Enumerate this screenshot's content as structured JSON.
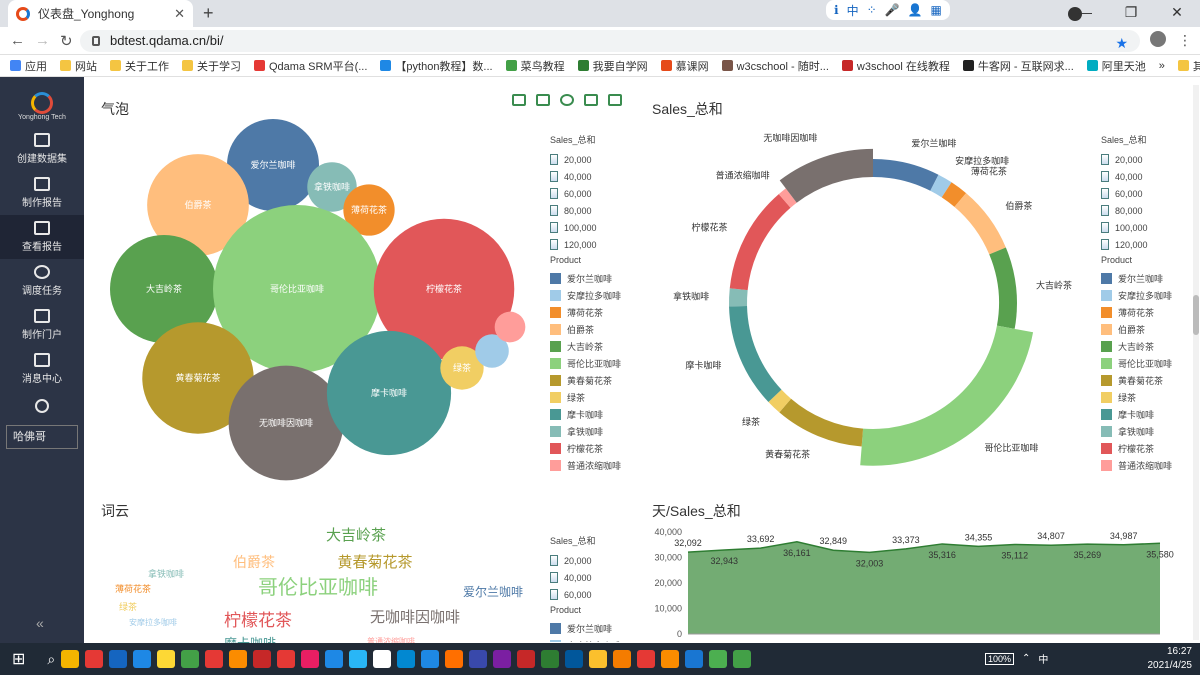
{
  "browser": {
    "tab_title": "仪表盘_Yonghong",
    "url": "bdtest.qdama.cn/bi/",
    "ext_items": [
      "ℹ",
      "中",
      "⁘",
      "🎤",
      "👤",
      "▦"
    ],
    "bookmarks": [
      "应用",
      "网站",
      "关于工作",
      "关于学习",
      "Qdama SRM平台(...",
      "【python教程】数...",
      "菜鸟教程",
      "我要自学网",
      "慕课网",
      "w3cschool - 随时...",
      "w3school 在线教程",
      "牛客网 - 互联网求...",
      "阿里天池",
      "»",
      "其他书签"
    ]
  },
  "sidebar": {
    "logo_text": "Yonghong Tech",
    "items": [
      {
        "label": "创建数据集",
        "icon": "dataset-icon"
      },
      {
        "label": "制作报告",
        "icon": "chart-icon"
      },
      {
        "label": "查看报告",
        "icon": "view-report-icon"
      },
      {
        "label": "调度任务",
        "icon": "clock-icon"
      },
      {
        "label": "制作门户",
        "icon": "home-icon"
      },
      {
        "label": "消息中心",
        "icon": "bell-icon"
      }
    ],
    "user": "哈佛哥"
  },
  "panels": {
    "bubble_title": "气泡",
    "donut_title": "Sales_总和",
    "cloud_title": "词云",
    "area_title": "天/Sales_总和"
  },
  "legends": {
    "size_header": "Sales_总和",
    "size_values": [
      "20,000",
      "40,000",
      "60,000",
      "80,000",
      "100,000",
      "120,000"
    ],
    "size_values_short": [
      "20,000",
      "40,000",
      "60,000"
    ],
    "product_header": "Product"
  },
  "products": [
    {
      "name": "爱尔兰咖啡",
      "color": "#4e79a7"
    },
    {
      "name": "安摩拉多咖啡",
      "color": "#a0cbe8"
    },
    {
      "name": "薄荷花茶",
      "color": "#f28e2b"
    },
    {
      "name": "伯爵茶",
      "color": "#ffbe7d"
    },
    {
      "name": "大吉岭茶",
      "color": "#59a14f"
    },
    {
      "name": "哥伦比亚咖啡",
      "color": "#8cd17d"
    },
    {
      "name": "黄春菊花茶",
      "color": "#b6992d"
    },
    {
      "name": "绿茶",
      "color": "#f1ce63"
    },
    {
      "name": "摩卡咖啡",
      "color": "#499894"
    },
    {
      "name": "拿铁咖啡",
      "color": "#86bcb6"
    },
    {
      "name": "柠檬花茶",
      "color": "#e15759"
    },
    {
      "name": "普通浓缩咖啡",
      "color": "#ff9d9a"
    },
    {
      "name": "无咖啡因咖啡",
      "color": "#79706e"
    }
  ],
  "chart_data": [
    {
      "type": "bubble",
      "title": "气泡",
      "labels": [
        "爱尔兰咖啡",
        "拿铁咖啡",
        "薄荷花茶",
        "伯爵茶",
        "大吉岭茶",
        "哥伦比亚咖啡",
        "柠檬花茶",
        "黄春菊花茶",
        "无咖啡因咖啡",
        "摩卡咖啡",
        "绿茶"
      ],
      "values": [
        {
          "name": "爱尔兰咖啡",
          "value": 45000,
          "color": "#4e79a7"
        },
        {
          "name": "拿铁咖啡",
          "value": 13000,
          "color": "#86bcb6"
        },
        {
          "name": "薄荷花茶",
          "value": 14000,
          "color": "#f28e2b"
        },
        {
          "name": "伯爵茶",
          "value": 55000,
          "color": "#ffbe7d"
        },
        {
          "name": "大吉岭茶",
          "value": 62000,
          "color": "#59a14f"
        },
        {
          "name": "哥伦比亚咖啡",
          "value": 150000,
          "color": "#8cd17d"
        },
        {
          "name": "柠檬花茶",
          "value": 105000,
          "color": "#e15759"
        },
        {
          "name": "黄春菊花茶",
          "value": 66000,
          "color": "#b6992d"
        },
        {
          "name": "无咖啡因咖啡",
          "value": 70000,
          "color": "#79706e"
        },
        {
          "name": "摩卡咖啡",
          "value": 82000,
          "color": "#499894"
        },
        {
          "name": "绿茶",
          "value": 10000,
          "color": "#f1ce63"
        },
        {
          "name": "",
          "value": 6000,
          "color": "#a0cbe8"
        },
        {
          "name": "",
          "value": 5000,
          "color": "#ff9d9a"
        }
      ]
    },
    {
      "type": "pie",
      "title": "Sales_总和",
      "slices": [
        {
          "name": "爱尔兰咖啡",
          "value": 45,
          "color": "#4e79a7"
        },
        {
          "name": "安摩拉多咖啡",
          "value": 10,
          "color": "#a0cbe8"
        },
        {
          "name": "薄荷花茶",
          "value": 12,
          "color": "#f28e2b"
        },
        {
          "name": "伯爵茶",
          "value": 45,
          "color": "#ffbe7d"
        },
        {
          "name": "大吉岭茶",
          "value": 55,
          "color": "#59a14f"
        },
        {
          "name": "哥伦比亚咖啡",
          "value": 140,
          "color": "#8cd17d"
        },
        {
          "name": "黄春菊花茶",
          "value": 60,
          "color": "#b6992d"
        },
        {
          "name": "绿茶",
          "value": 10,
          "color": "#f1ce63"
        },
        {
          "name": "摩卡咖啡",
          "value": 70,
          "color": "#499894"
        },
        {
          "name": "拿铁咖啡",
          "value": 12,
          "color": "#86bcb6"
        },
        {
          "name": "柠檬花茶",
          "value": 72,
          "color": "#e15759"
        },
        {
          "name": "普通浓缩咖啡",
          "value": 6,
          "color": "#ff9d9a"
        },
        {
          "name": "无咖啡因咖啡",
          "value": 62,
          "color": "#79706e"
        }
      ]
    },
    {
      "type": "wordcloud",
      "title": "词云",
      "words": [
        {
          "text": "大吉岭茶",
          "color": "#59a14f",
          "weight": 15
        },
        {
          "text": "伯爵茶",
          "color": "#ffbe7d",
          "weight": 14
        },
        {
          "text": "黄春菊花茶",
          "color": "#b6992d",
          "weight": 15
        },
        {
          "text": "拿铁咖啡",
          "color": "#86bcb6",
          "weight": 9
        },
        {
          "text": "薄荷花茶",
          "color": "#f28e2b",
          "weight": 9
        },
        {
          "text": "哥伦比亚咖啡",
          "color": "#8cd17d",
          "weight": 20
        },
        {
          "text": "爱尔兰咖啡",
          "color": "#4e79a7",
          "weight": 12
        },
        {
          "text": "绿茶",
          "color": "#f1ce63",
          "weight": 9
        },
        {
          "text": "柠檬花茶",
          "color": "#e15759",
          "weight": 17
        },
        {
          "text": "无咖啡因咖啡",
          "color": "#79706e",
          "weight": 15
        },
        {
          "text": "安摩拉多咖啡",
          "color": "#a0cbe8",
          "weight": 8
        },
        {
          "text": "普通浓缩咖啡",
          "color": "#ff9d9a",
          "weight": 8
        },
        {
          "text": "摩卡咖啡",
          "color": "#499894",
          "weight": 13
        }
      ]
    },
    {
      "type": "area",
      "title": "天/Sales_总和",
      "color": "#5a9e5a",
      "y_ticks": [
        "40,000",
        "30,000",
        "20,000",
        "10,000",
        "0"
      ],
      "ylim": [
        0,
        40000
      ],
      "points": [
        32092,
        32943,
        33692,
        36161,
        32849,
        32003,
        33373,
        35316,
        34355,
        35112,
        34807,
        35269,
        34987,
        35580
      ],
      "labels": [
        "32,092",
        "32,943",
        "33,692",
        "36,161",
        "32,849",
        "32,003",
        "33,373",
        "35,316",
        "34,355",
        "35,112",
        "34,807",
        "35,269",
        "34,987",
        "35,580"
      ]
    }
  ],
  "taskbar": {
    "battery": "100%",
    "ime": "中",
    "time": "16:27",
    "date": "2021/4/25"
  }
}
